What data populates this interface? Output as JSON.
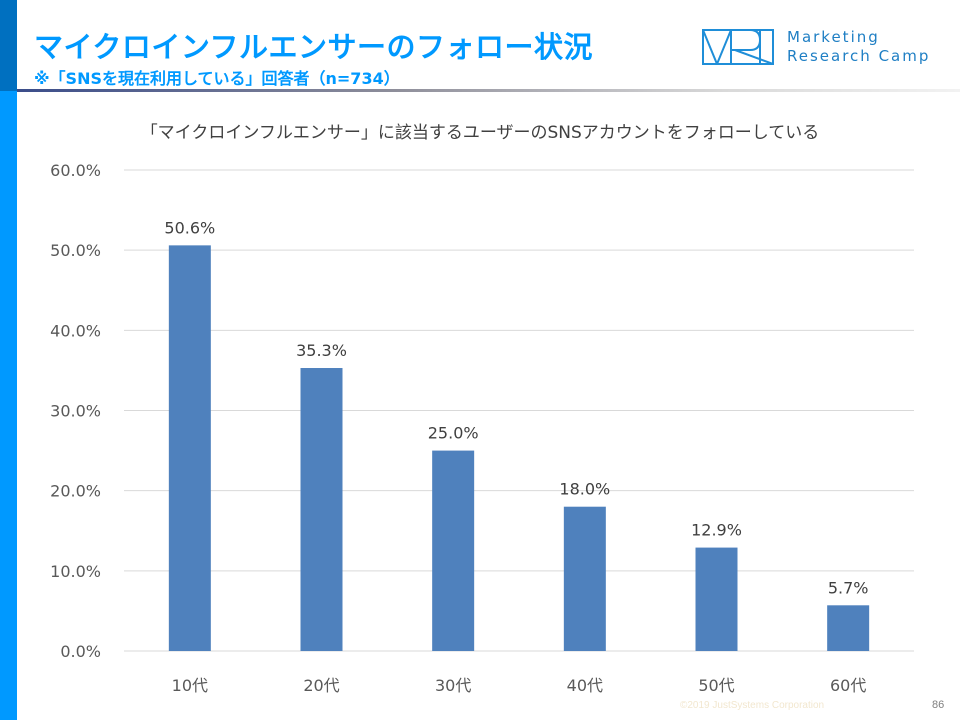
{
  "header": {
    "title": "マイクロインフルエンサーのフォロー状況",
    "subtitle": "※「SNSを現在利用している」回答者（n=734）",
    "logo_line1": "Marketing",
    "logo_line2": "Research Camp",
    "logo_mark": "MRC"
  },
  "colors": {
    "accent_dark": "#0070C0",
    "accent": "#0099FF",
    "bar": "#4F81BD"
  },
  "chart_data": {
    "type": "bar",
    "title": "「マイクロインフルエンサー」に該当するユーザーのSNSアカウントをフォローしている",
    "xlabel": "",
    "ylabel": "",
    "categories": [
      "10代",
      "20代",
      "30代",
      "40代",
      "50代",
      "60代"
    ],
    "values": [
      50.6,
      35.3,
      25.0,
      18.0,
      12.9,
      5.7
    ],
    "data_labels": [
      "50.6%",
      "35.3%",
      "25.0%",
      "18.0%",
      "12.9%",
      "5.7%"
    ],
    "ylim": [
      0,
      60
    ],
    "yticks": [
      0,
      10,
      20,
      30,
      40,
      50,
      60
    ],
    "ytick_labels": [
      "0.0%",
      "10.0%",
      "20.0%",
      "30.0%",
      "40.0%",
      "50.0%",
      "60.0%"
    ],
    "grid": true,
    "legend": "none"
  },
  "footer": {
    "copyright": "©2019 JustSystems Corporation",
    "page_number": "86"
  }
}
